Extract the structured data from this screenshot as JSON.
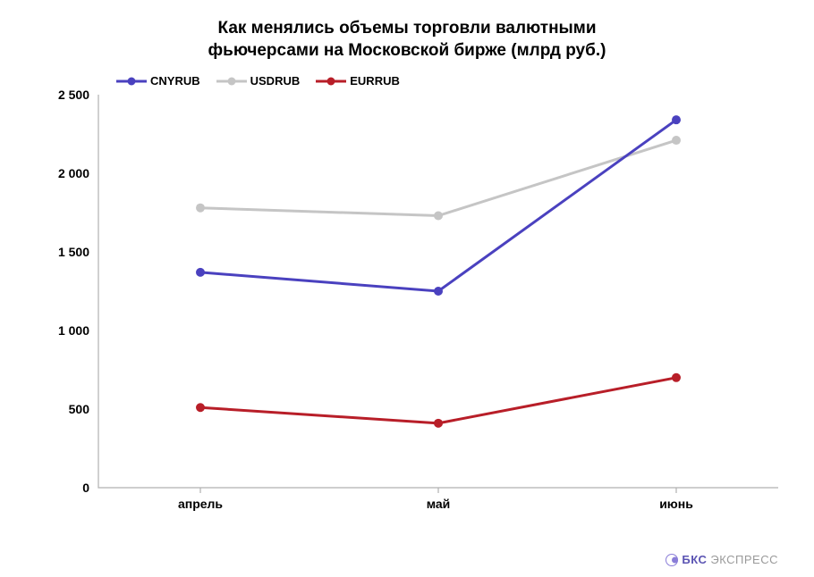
{
  "chart": {
    "type": "line",
    "title_line1": "Как менялись объемы торговли валютными",
    "title_line2": "фьючерсами на Московской бирже (млрд руб.)",
    "title_fontsize": 19,
    "label_fontsize": 14,
    "legend_fontsize": 13,
    "background_color": "#ffffff",
    "axis_color": "#b0b0b0",
    "text_color": "#000000",
    "ylim": [
      0,
      2500
    ],
    "ytick_step": 500,
    "yticks": [
      "0",
      "500",
      "1 000",
      "1 500",
      "2 000",
      "2 500"
    ],
    "categories": [
      "апрель",
      "май",
      "июнь"
    ],
    "line_width": 3,
    "marker_size": 10,
    "series": [
      {
        "name": "CNYRUB",
        "color": "#4a41bf",
        "values": [
          1370,
          1250,
          2340
        ]
      },
      {
        "name": "USDRUB",
        "color": "#c5c5c5",
        "values": [
          1780,
          1730,
          2210
        ]
      },
      {
        "name": "EURRUB",
        "color": "#b81e28",
        "values": [
          510,
          410,
          700
        ]
      }
    ]
  },
  "watermark": {
    "brand_bold": "БКС",
    "brand_light": "ЭКСПРЕСС",
    "brand_color": "#5b54b3",
    "light_color": "#9a9a9a"
  }
}
